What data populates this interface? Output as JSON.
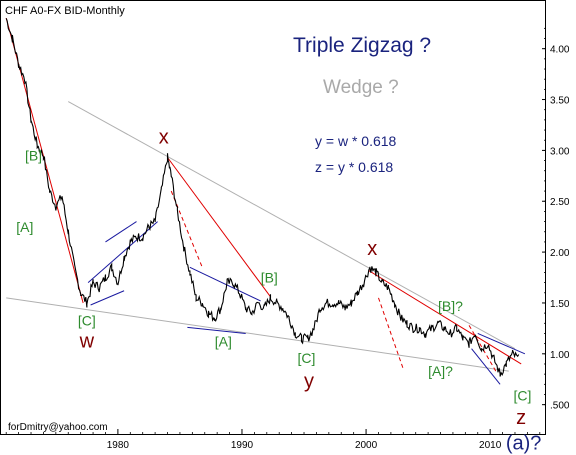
{
  "chart_data": {
    "type": "line",
    "title": "CHF A0-FX BID-Monthly",
    "ylabel": "",
    "xlabel": "",
    "x_ticks": [
      "1980",
      "1990",
      "2000",
      "2010"
    ],
    "y_ticks": [
      "4.00",
      "3.50",
      "3.00",
      "2.50",
      "2.00",
      "1.50",
      "1.00",
      ".500"
    ],
    "ylim": [
      0.3,
      4.4
    ],
    "xlim": [
      1970.5,
      2014.5
    ],
    "grid": false,
    "series": [
      {
        "x": [
          1971.0,
          1971.5,
          1972.0,
          1972.5,
          1973.0,
          1973.5,
          1974.0,
          1974.5,
          1975.0,
          1975.5,
          1976.0,
          1976.5,
          1977.0,
          1977.5,
          1978.0,
          1978.5,
          1979.0,
          1979.5,
          1980.0,
          1980.5,
          1981.0,
          1981.5,
          1982.0,
          1982.5,
          1983.0,
          1983.5,
          1984.0,
          1984.3,
          1984.8,
          1985.3,
          1985.8,
          1986.3,
          1986.8,
          1987.3,
          1987.8,
          1988.3,
          1988.8,
          1989.3,
          1989.8,
          1990.3,
          1990.8,
          1991.3,
          1991.8,
          1992.3,
          1992.8,
          1993.3,
          1993.8,
          1994.3,
          1994.8,
          1995.3,
          1995.8,
          1996.3,
          1996.8,
          1997.3,
          1997.8,
          1998.3,
          1998.8,
          1999.3,
          1999.8,
          2000.3,
          2000.8,
          2001.3,
          2001.8,
          2002.3,
          2002.8,
          2003.3,
          2003.8,
          2004.3,
          2004.8,
          2005.3,
          2005.8,
          2006.3,
          2006.8,
          2007.3,
          2007.8,
          2008.3,
          2008.8,
          2009.3,
          2009.8,
          2010.3,
          2010.8,
          2011.3,
          2011.8,
          2012.3
        ],
        "y": [
          4.3,
          4.1,
          3.85,
          3.7,
          3.3,
          3.05,
          2.95,
          2.6,
          2.45,
          2.55,
          2.2,
          1.85,
          1.6,
          1.5,
          1.7,
          1.65,
          1.75,
          1.85,
          1.7,
          1.95,
          2.1,
          2.15,
          2.15,
          2.25,
          2.3,
          2.6,
          2.93,
          2.75,
          2.4,
          2.05,
          1.8,
          1.55,
          1.5,
          1.4,
          1.35,
          1.45,
          1.7,
          1.7,
          1.6,
          1.45,
          1.4,
          1.5,
          1.45,
          1.55,
          1.5,
          1.45,
          1.35,
          1.2,
          1.15,
          1.15,
          1.25,
          1.45,
          1.5,
          1.5,
          1.5,
          1.45,
          1.5,
          1.6,
          1.7,
          1.85,
          1.8,
          1.7,
          1.65,
          1.5,
          1.35,
          1.3,
          1.25,
          1.25,
          1.2,
          1.25,
          1.3,
          1.25,
          1.2,
          1.25,
          1.15,
          1.1,
          1.2,
          1.05,
          1.1,
          0.95,
          0.8,
          0.9,
          1.0,
          0.95
        ]
      }
    ],
    "annotations": {
      "headline": "Triple Zigzag ?",
      "subheadline": "Wedge ?",
      "formula1": "y = w * 0.618",
      "formula2": "z = y * 0.618",
      "credit": "forDmitry@yahoo.com",
      "labels": [
        {
          "text": "[B]",
          "x": 1973.2,
          "y": 2.9,
          "color": "green"
        },
        {
          "text": "[A]",
          "x": 1972.5,
          "y": 2.2,
          "color": "green"
        },
        {
          "text": "[C]",
          "x": 1977.5,
          "y": 1.28,
          "color": "green"
        },
        {
          "text": "w",
          "x": 1977.5,
          "y": 1.06,
          "color": "red"
        },
        {
          "text": "x",
          "x": 1983.7,
          "y": 3.07,
          "color": "red"
        },
        {
          "text": "[B]",
          "x": 1992.2,
          "y": 1.7,
          "color": "green"
        },
        {
          "text": "[A]",
          "x": 1988.5,
          "y": 1.07,
          "color": "green"
        },
        {
          "text": "[C]",
          "x": 1995.2,
          "y": 0.91,
          "color": "green"
        },
        {
          "text": "y",
          "x": 1995.4,
          "y": 0.67,
          "color": "red"
        },
        {
          "text": "x",
          "x": 2000.5,
          "y": 1.97,
          "color": "red"
        },
        {
          "text": "[B]?",
          "x": 2006.8,
          "y": 1.42,
          "color": "green"
        },
        {
          "text": "[A]?",
          "x": 2006.0,
          "y": 0.78,
          "color": "green"
        },
        {
          "text": "[C]",
          "x": 2012.6,
          "y": 0.54,
          "color": "green"
        },
        {
          "text": "z",
          "x": 2012.5,
          "y": 0.31,
          "color": "red"
        },
        {
          "text": "(a)?",
          "x": 2012.7,
          "y": 0.06,
          "color": "navy"
        }
      ]
    },
    "lines": {
      "grey": [
        {
          "x1": 1971.0,
          "y1": 1.55,
          "x2": 2011.5,
          "y2": 0.83
        },
        {
          "x1": 1976.0,
          "y1": 3.48,
          "x2": 2012.0,
          "y2": 1.05
        }
      ],
      "red_solid": [
        {
          "x1": 1971.0,
          "y1": 4.3,
          "x2": 1977.2,
          "y2": 1.5
        },
        {
          "x1": 1984.0,
          "y1": 2.93,
          "x2": 1992.3,
          "y2": 1.56
        },
        {
          "x1": 2000.2,
          "y1": 1.82,
          "x2": 2012.5,
          "y2": 0.9
        }
      ],
      "red_dashed": [
        {
          "x1": 1984.3,
          "y1": 2.6,
          "x2": 1986.8,
          "y2": 1.85
        },
        {
          "x1": 2001.0,
          "y1": 1.55,
          "x2": 2003.0,
          "y2": 0.85
        },
        {
          "x1": 2008.3,
          "y1": 1.28,
          "x2": 2010.5,
          "y2": 0.82
        }
      ],
      "blue": [
        {
          "x1": 1977.8,
          "y1": 1.48,
          "x2": 1980.5,
          "y2": 1.62
        },
        {
          "x1": 1977.6,
          "y1": 1.7,
          "x2": 1983.2,
          "y2": 2.3
        },
        {
          "x1": 1979.0,
          "y1": 2.1,
          "x2": 1981.5,
          "y2": 2.3
        },
        {
          "x1": 1985.8,
          "y1": 1.85,
          "x2": 1991.5,
          "y2": 1.52
        },
        {
          "x1": 1985.6,
          "y1": 1.26,
          "x2": 1990.3,
          "y2": 1.2
        },
        {
          "x1": 2009.0,
          "y1": 1.2,
          "x2": 2012.8,
          "y2": 1.0
        },
        {
          "x1": 2008.5,
          "y1": 1.05,
          "x2": 2010.8,
          "y2": 0.7
        }
      ]
    }
  }
}
